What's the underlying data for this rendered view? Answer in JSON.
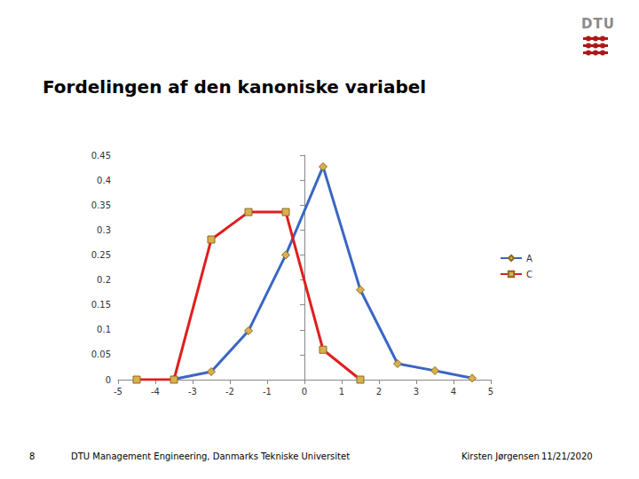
{
  "chart_data": {
    "type": "line",
    "title": "Fordelingen af den kanoniske variabel",
    "series": [
      {
        "name": "A",
        "color": "#3a66c4",
        "marker": "diamond",
        "x": [
          -3.5,
          -2.5,
          -1.5,
          -0.5,
          0.5,
          1.5,
          2.5,
          3.5,
          4.5
        ],
        "values": [
          0.001,
          0.016,
          0.098,
          0.25,
          0.427,
          0.18,
          0.032,
          0.018,
          0.003
        ]
      },
      {
        "name": "C",
        "color": "#e01e1e",
        "marker": "square",
        "x": [
          -4.5,
          -3.5,
          -2.5,
          -1.5,
          -0.5,
          0.5,
          1.5
        ],
        "values": [
          0,
          0,
          0.281,
          0.336,
          0.336,
          0.06,
          0
        ]
      }
    ],
    "xlim": [
      -5,
      5
    ],
    "xticks": [
      -5,
      -4,
      -3,
      -2,
      -1,
      0,
      1,
      2,
      3,
      4,
      5
    ],
    "ylim": [
      0,
      0.45
    ],
    "yticks": [
      0,
      0.05,
      0.1,
      0.15,
      0.2,
      0.25,
      0.3,
      0.35,
      0.4,
      0.45
    ],
    "grid": false,
    "legend": "right"
  },
  "footer": {
    "page": "8",
    "institution": "DTU Management Engineering, Danmarks Tekniske Universitet",
    "author": "Kirsten Jørgensen",
    "date": "11/21/2020"
  },
  "logo": "DTU"
}
